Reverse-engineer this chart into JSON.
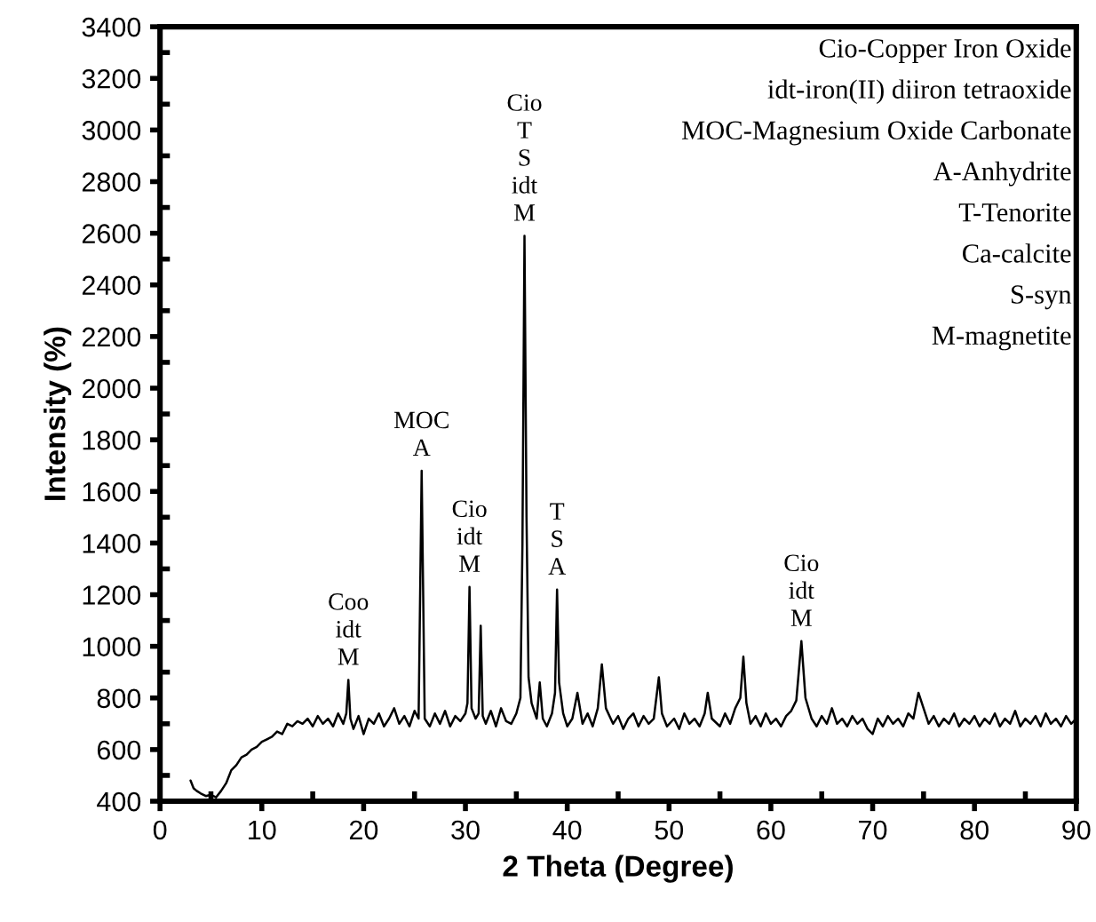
{
  "chart_data": {
    "type": "line",
    "xlabel": "2 Theta (Degree)",
    "ylabel": "Intensity (%)",
    "xlim": [
      0,
      90
    ],
    "xticks": [
      0,
      10,
      20,
      30,
      40,
      50,
      60,
      70,
      80,
      90
    ],
    "ylim": [
      400,
      3400
    ],
    "yticks": [
      400,
      600,
      800,
      1000,
      1200,
      1400,
      1600,
      1800,
      2000,
      2200,
      2400,
      2600,
      2800,
      3000,
      3200,
      3400
    ],
    "grid": false,
    "legend": false,
    "marker": "none",
    "line_style": "solid",
    "series": [
      {
        "color": "#000000",
        "x": [
          3,
          3.3,
          3.6,
          4,
          4.5,
          5,
          5.5,
          6,
          6.5,
          7,
          7.5,
          8,
          8.5,
          9,
          9.5,
          10,
          10.5,
          11,
          11.5,
          12,
          12.5,
          13,
          13.5,
          14,
          14.5,
          15,
          15.5,
          16,
          16.5,
          17,
          17.5,
          18,
          18.3,
          18.5,
          18.7,
          19,
          19.5,
          20,
          20.5,
          21,
          21.5,
          22,
          22.5,
          23,
          23.5,
          24,
          24.5,
          25,
          25.4,
          25.7,
          26,
          26.5,
          27,
          27.5,
          28,
          28.5,
          29,
          29.5,
          30,
          30.2,
          30.4,
          30.6,
          31,
          31.3,
          31.5,
          31.7,
          32,
          32.5,
          33,
          33.5,
          34,
          34.5,
          35,
          35.4,
          35.6,
          35.8,
          36,
          36.2,
          36.5,
          37,
          37.3,
          37.6,
          38,
          38.5,
          38.8,
          39,
          39.2,
          39.6,
          40,
          40.5,
          41,
          41.5,
          42,
          42.5,
          43,
          43.4,
          43.8,
          44.5,
          45,
          45.5,
          46,
          46.5,
          47,
          47.5,
          48,
          48.5,
          49,
          49.3,
          49.8,
          50.5,
          51,
          51.5,
          52,
          52.5,
          53,
          53.5,
          53.8,
          54.2,
          55,
          55.5,
          56,
          56.5,
          57,
          57.3,
          57.6,
          58,
          58.5,
          59,
          59.5,
          60,
          60.5,
          61,
          61.5,
          62,
          62.5,
          63,
          63.4,
          64,
          64.5,
          65,
          65.5,
          66,
          66.5,
          67,
          67.5,
          68,
          68.5,
          69,
          69.5,
          70,
          70.5,
          71,
          71.5,
          72,
          72.5,
          73,
          73.5,
          74,
          74.5,
          75,
          75.5,
          76,
          76.5,
          77,
          77.5,
          78,
          78.5,
          79,
          79.5,
          80,
          80.5,
          81,
          81.5,
          82,
          82.5,
          83,
          83.5,
          84,
          84.5,
          85,
          85.5,
          86,
          86.5,
          87,
          87.5,
          88,
          88.5,
          89,
          89.5,
          90
        ],
        "values": [
          480,
          450,
          440,
          430,
          420,
          425,
          415,
          440,
          470,
          520,
          540,
          570,
          580,
          600,
          610,
          630,
          640,
          650,
          670,
          660,
          700,
          690,
          710,
          700,
          720,
          690,
          730,
          700,
          720,
          690,
          740,
          700,
          740,
          870,
          720,
          680,
          730,
          660,
          720,
          700,
          740,
          690,
          720,
          760,
          700,
          730,
          690,
          750,
          720,
          1680,
          720,
          690,
          740,
          700,
          750,
          690,
          730,
          710,
          740,
          780,
          1230,
          760,
          720,
          740,
          1080,
          730,
          700,
          750,
          690,
          760,
          710,
          700,
          740,
          800,
          1400,
          2590,
          1500,
          880,
          780,
          720,
          860,
          720,
          690,
          740,
          820,
          1220,
          860,
          740,
          690,
          720,
          820,
          700,
          740,
          690,
          760,
          930,
          760,
          700,
          730,
          680,
          720,
          740,
          690,
          730,
          700,
          720,
          880,
          740,
          690,
          720,
          680,
          740,
          700,
          720,
          690,
          740,
          820,
          720,
          690,
          740,
          700,
          760,
          800,
          960,
          780,
          700,
          730,
          690,
          740,
          700,
          720,
          690,
          730,
          750,
          790,
          1020,
          800,
          720,
          690,
          730,
          700,
          760,
          700,
          720,
          690,
          730,
          700,
          720,
          680,
          660,
          720,
          690,
          730,
          700,
          720,
          690,
          740,
          720,
          820,
          760,
          700,
          730,
          690,
          720,
          700,
          740,
          690,
          720,
          700,
          730,
          690,
          720,
          700,
          740,
          690,
          720,
          700,
          750,
          690,
          720,
          700,
          730,
          690,
          740,
          700,
          720,
          690,
          730,
          700,
          720
        ]
      }
    ],
    "annotations": [
      {
        "text": "Coo\nidt\nM",
        "x": 18.5,
        "y": 870
      },
      {
        "text": "MOC\nA",
        "x": 25.7,
        "y": 1680
      },
      {
        "text": "Cio\nidt\nM",
        "x": 30.4,
        "y": 1230
      },
      {
        "text": "Cio\nT\nS\nidt\nM",
        "x": 35.8,
        "y": 2590
      },
      {
        "text": "T\nS\nA",
        "x": 39,
        "y": 1220
      },
      {
        "text": "Cio\nidt\nM",
        "x": 63,
        "y": 1020
      },
      "Cio-Copper Iron Oxide",
      "idt-iron(II) diiron tetraoxide",
      "MOC-Magnesium Oxide Carbonate",
      "A-Anhydrite",
      "T-Tenorite",
      "Ca-calcite",
      "S-syn",
      "M-magnetite"
    ]
  }
}
